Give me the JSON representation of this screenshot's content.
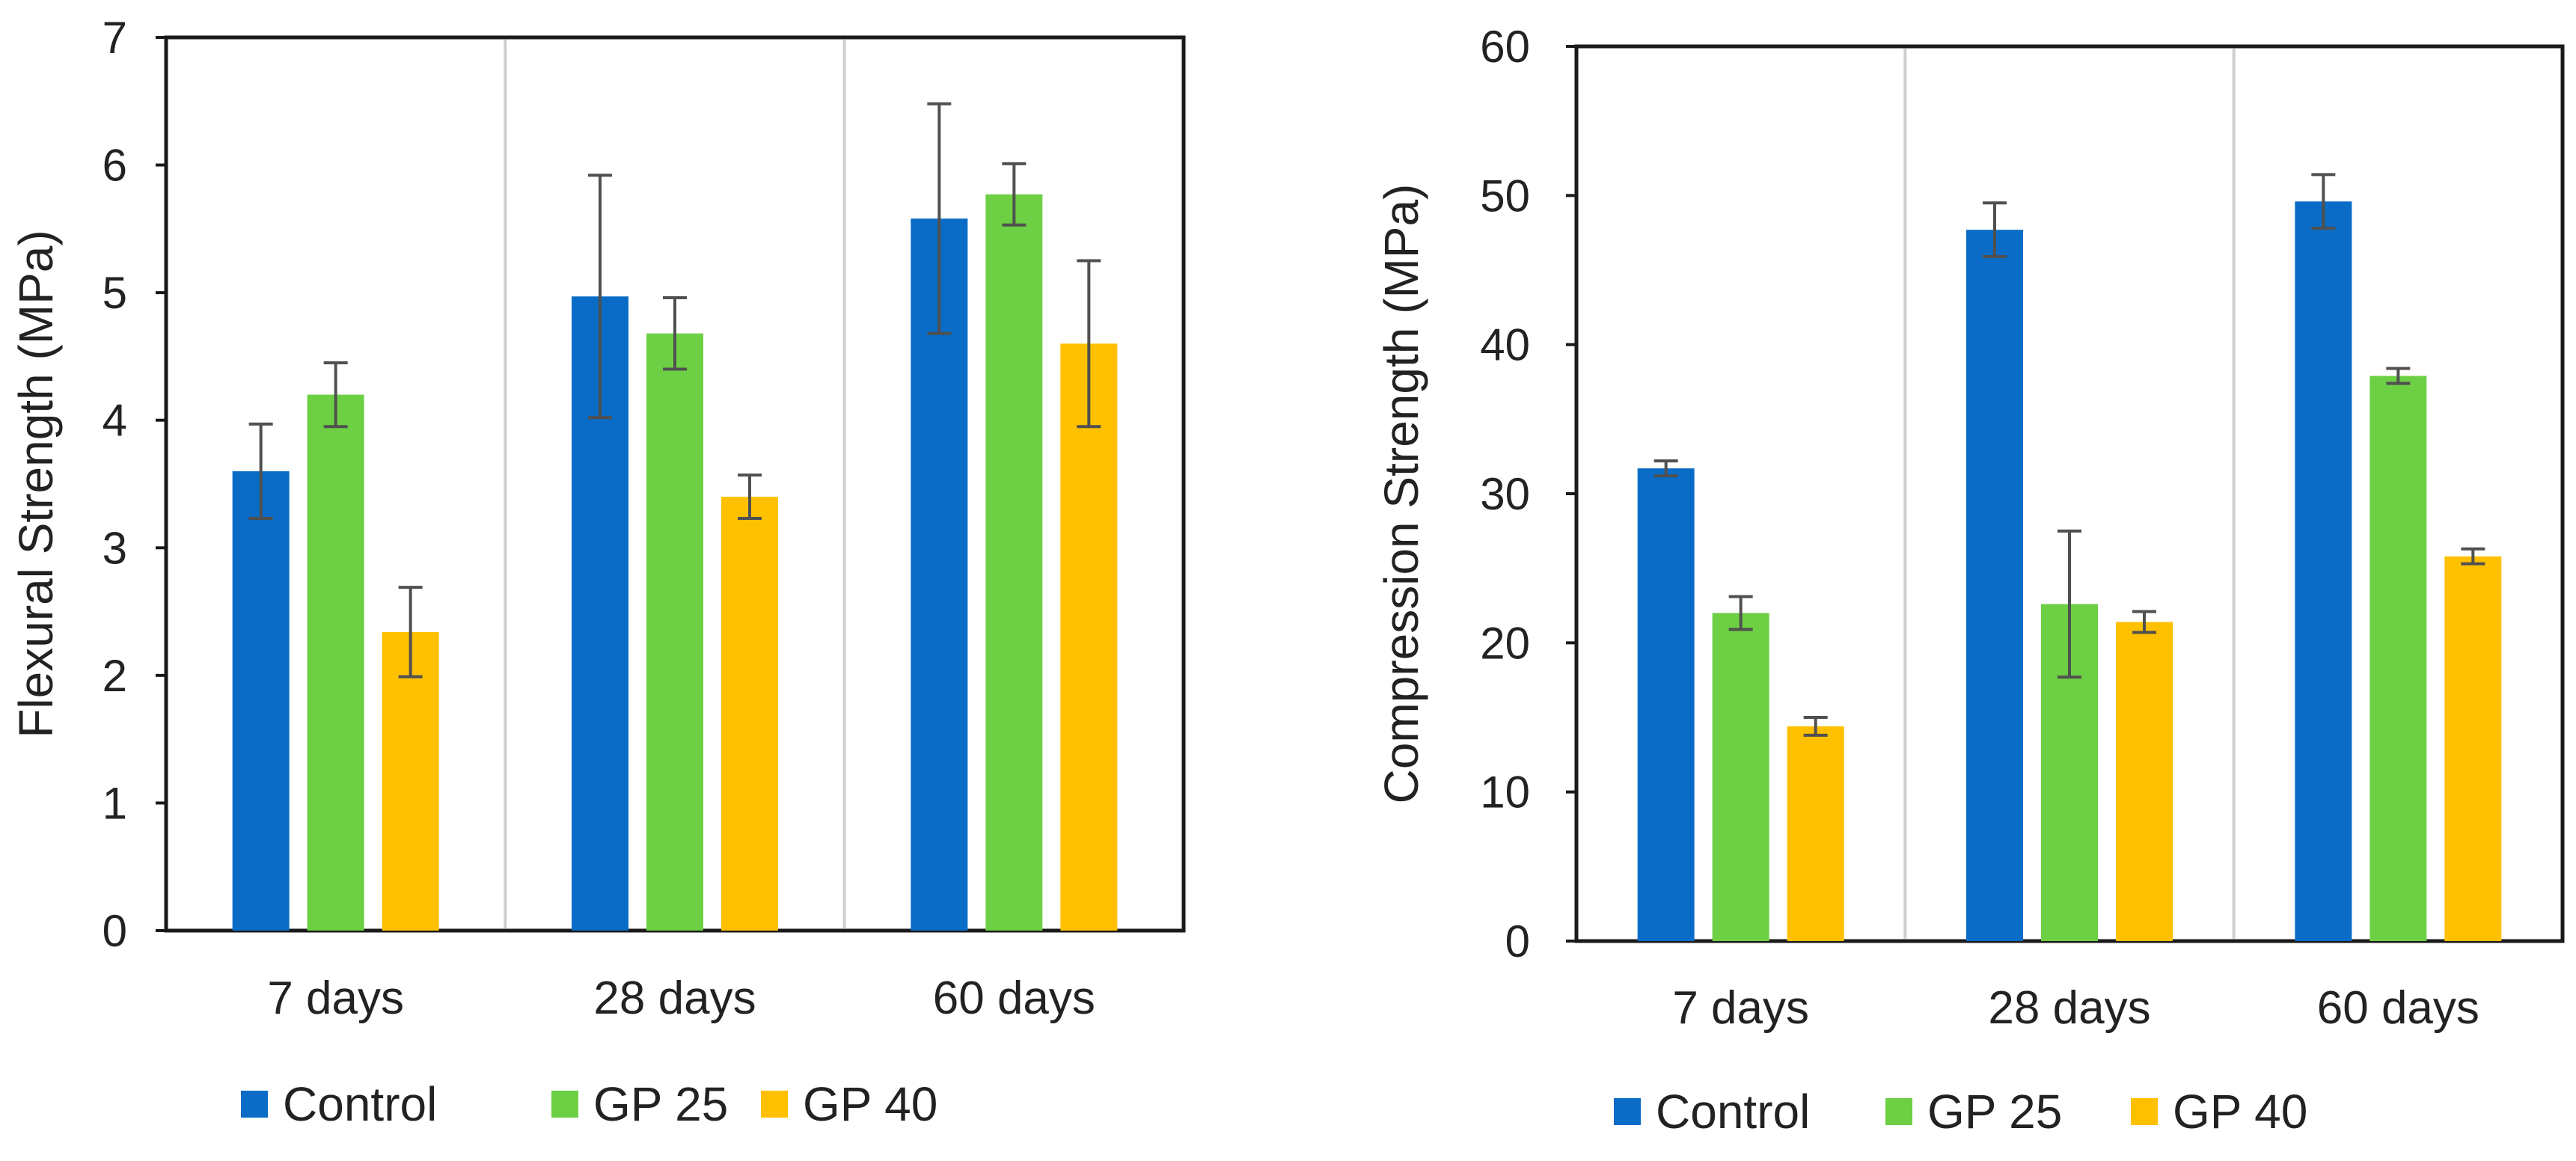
{
  "colors": {
    "Control": "#0A6CC6",
    "GP 25": "#6DCF43",
    "GP 40": "#FFC000",
    "error_bar": "#505050",
    "frame": "#1a1a1a",
    "separator": "#cfcfcf"
  },
  "chart_data": [
    {
      "type": "bar",
      "title": "",
      "xlabel": "",
      "ylabel": "Flexural Strength (MPa)",
      "ylim": [
        0,
        7
      ],
      "yticks": [
        0,
        1,
        2,
        3,
        4,
        5,
        6,
        7
      ],
      "categories": [
        "7 days",
        "28 days",
        "60 days"
      ],
      "legend_position": "bottom",
      "series": [
        {
          "name": "Control",
          "values": [
            3.6,
            4.97,
            5.58
          ],
          "errors": [
            0.37,
            0.95,
            0.9
          ]
        },
        {
          "name": "GP 25",
          "values": [
            4.2,
            4.68,
            5.77
          ],
          "errors": [
            0.25,
            0.28,
            0.24
          ]
        },
        {
          "name": "GP 40",
          "values": [
            2.34,
            3.4,
            4.6
          ],
          "errors": [
            0.35,
            0.17,
            0.65
          ]
        }
      ]
    },
    {
      "type": "bar",
      "title": "",
      "xlabel": "",
      "ylabel": "Compression Strength (MPa)",
      "ylim": [
        0,
        60
      ],
      "yticks": [
        0,
        10,
        20,
        30,
        40,
        50,
        60
      ],
      "categories": [
        "7 days",
        "28 days",
        "60 days"
      ],
      "legend_position": "bottom",
      "series": [
        {
          "name": "Control",
          "values": [
            31.7,
            47.7,
            49.6
          ],
          "errors": [
            0.5,
            1.8,
            1.8
          ]
        },
        {
          "name": "GP 25",
          "values": [
            22.0,
            22.6,
            37.9
          ],
          "errors": [
            1.1,
            4.9,
            0.5
          ]
        },
        {
          "name": "GP 40",
          "values": [
            14.4,
            21.4,
            25.8
          ],
          "errors": [
            0.6,
            0.7,
            0.5
          ]
        }
      ]
    }
  ]
}
